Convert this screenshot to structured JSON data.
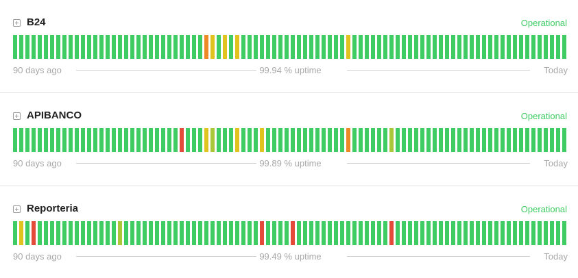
{
  "colors": {
    "operational": "#3ecc63",
    "green": "#3ecc63",
    "yellow": "#e0c31f",
    "olive": "#a9c739",
    "orange": "#ee8a26",
    "red": "#e44a3a"
  },
  "components": [
    {
      "name": "B24",
      "status": "Operational",
      "footer_left": "90 days ago",
      "uptime": "99.94 % uptime",
      "footer_right": "Today",
      "days": [
        "g",
        "g",
        "g",
        "g",
        "g",
        "g",
        "g",
        "g",
        "g",
        "g",
        "g",
        "g",
        "g",
        "g",
        "g",
        "g",
        "g",
        "g",
        "g",
        "g",
        "g",
        "g",
        "g",
        "g",
        "g",
        "g",
        "g",
        "g",
        "g",
        "g",
        "g",
        "o",
        "y",
        "g",
        "y",
        "g",
        "y",
        "g",
        "g",
        "g",
        "g",
        "g",
        "g",
        "g",
        "g",
        "g",
        "g",
        "g",
        "g",
        "g",
        "g",
        "g",
        "g",
        "g",
        "y",
        "g",
        "g",
        "g",
        "g",
        "g",
        "g",
        "g",
        "g",
        "g",
        "g",
        "g",
        "g",
        "g",
        "g",
        "g",
        "g",
        "g",
        "g",
        "g",
        "g",
        "g",
        "g",
        "g",
        "g",
        "g",
        "g",
        "g",
        "g",
        "g",
        "g",
        "g",
        "g",
        "g",
        "g",
        "g"
      ]
    },
    {
      "name": "APIBANCO",
      "status": "Operational",
      "footer_left": "90 days ago",
      "uptime": "99.89 % uptime",
      "footer_right": "Today",
      "days": [
        "g",
        "g",
        "g",
        "g",
        "g",
        "g",
        "g",
        "g",
        "g",
        "g",
        "g",
        "g",
        "g",
        "g",
        "g",
        "g",
        "g",
        "g",
        "g",
        "g",
        "g",
        "g",
        "g",
        "g",
        "g",
        "g",
        "g",
        "r",
        "g",
        "g",
        "g",
        "y",
        "v",
        "g",
        "g",
        "g",
        "y",
        "g",
        "g",
        "g",
        "y",
        "g",
        "g",
        "g",
        "g",
        "g",
        "g",
        "g",
        "g",
        "g",
        "g",
        "g",
        "g",
        "g",
        "o",
        "g",
        "g",
        "g",
        "g",
        "g",
        "g",
        "v",
        "g",
        "g",
        "g",
        "g",
        "g",
        "g",
        "g",
        "g",
        "g",
        "g",
        "g",
        "g",
        "g",
        "g",
        "g",
        "g",
        "g",
        "g",
        "g",
        "g",
        "g",
        "g",
        "g",
        "g",
        "g",
        "g",
        "g",
        "g"
      ]
    },
    {
      "name": "Reporteria",
      "status": "Operational",
      "footer_left": "90 days ago",
      "uptime": "99.49 % uptime",
      "footer_right": "Today",
      "days": [
        "g",
        "y",
        "g",
        "r",
        "g",
        "g",
        "g",
        "g",
        "g",
        "g",
        "g",
        "g",
        "g",
        "g",
        "g",
        "g",
        "g",
        "v",
        "g",
        "g",
        "g",
        "g",
        "g",
        "g",
        "g",
        "g",
        "g",
        "g",
        "g",
        "g",
        "g",
        "g",
        "g",
        "g",
        "g",
        "g",
        "g",
        "g",
        "g",
        "g",
        "r",
        "g",
        "g",
        "g",
        "g",
        "r",
        "g",
        "g",
        "g",
        "g",
        "g",
        "g",
        "g",
        "g",
        "g",
        "g",
        "g",
        "g",
        "g",
        "g",
        "g",
        "r",
        "g",
        "g",
        "g",
        "g",
        "g",
        "g",
        "g",
        "g",
        "g",
        "g",
        "g",
        "g",
        "g",
        "g",
        "g",
        "g",
        "g",
        "g",
        "g",
        "g",
        "g",
        "g",
        "g",
        "g",
        "g",
        "g",
        "g",
        "g"
      ]
    }
  ]
}
